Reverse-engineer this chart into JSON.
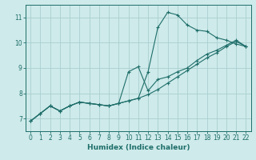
{
  "xlabel": "Humidex (Indice chaleur)",
  "ylabel": "",
  "bg_color": "#ceeaea",
  "line_color": "#1e6e6a",
  "grid_color": "#aacfcf",
  "xlim": [
    -0.5,
    22.5
  ],
  "ylim": [
    6.5,
    11.5
  ],
  "xticks": [
    0,
    1,
    2,
    3,
    4,
    5,
    6,
    7,
    8,
    9,
    10,
    11,
    12,
    13,
    14,
    15,
    16,
    17,
    18,
    19,
    20,
    21,
    22
  ],
  "yticks": [
    7,
    8,
    9,
    10,
    11
  ],
  "line1_x": [
    0,
    1,
    2,
    3,
    4,
    5,
    6,
    7,
    8,
    9,
    10,
    11,
    12,
    13,
    14,
    15,
    16,
    17,
    18,
    19,
    20,
    21,
    22
  ],
  "line1_y": [
    6.9,
    7.2,
    7.5,
    7.3,
    7.5,
    7.65,
    7.6,
    7.55,
    7.5,
    7.6,
    7.7,
    7.8,
    8.85,
    10.6,
    11.2,
    11.1,
    10.7,
    10.5,
    10.45,
    10.2,
    10.1,
    9.95,
    9.85
  ],
  "line2_x": [
    0,
    1,
    2,
    3,
    4,
    5,
    6,
    7,
    8,
    9,
    10,
    11,
    12,
    13,
    14,
    15,
    16,
    17,
    18,
    19,
    20,
    21,
    22
  ],
  "line2_y": [
    6.9,
    7.2,
    7.5,
    7.3,
    7.5,
    7.65,
    7.6,
    7.55,
    7.5,
    7.6,
    7.7,
    7.8,
    7.95,
    8.15,
    8.4,
    8.65,
    8.9,
    9.15,
    9.4,
    9.6,
    9.85,
    10.05,
    9.85
  ],
  "line3_x": [
    0,
    1,
    2,
    3,
    4,
    5,
    6,
    7,
    8,
    9,
    10,
    11,
    12,
    13,
    14,
    15,
    16,
    17,
    18,
    19,
    20,
    21,
    22
  ],
  "line3_y": [
    6.9,
    7.2,
    7.5,
    7.3,
    7.5,
    7.65,
    7.6,
    7.55,
    7.5,
    7.6,
    8.85,
    9.05,
    8.1,
    8.55,
    8.65,
    8.85,
    9.0,
    9.3,
    9.55,
    9.7,
    9.9,
    10.1,
    9.85
  ]
}
